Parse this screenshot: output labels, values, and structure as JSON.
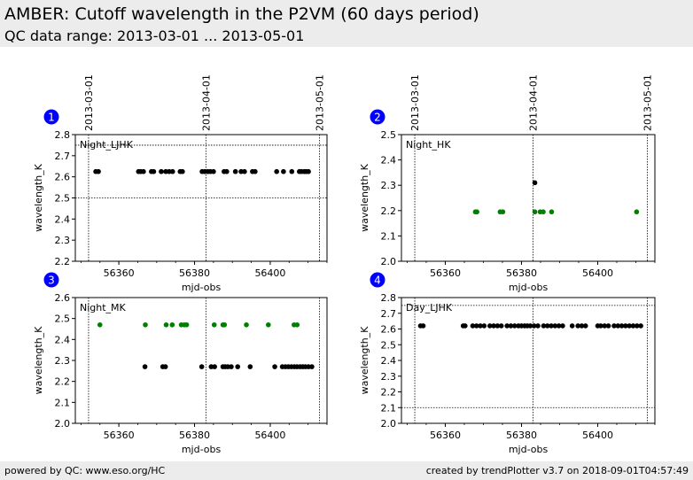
{
  "header": {
    "title": "AMBER: Cutoff wavelength in the P2VM (60 days period)",
    "subtitle": "QC data range: 2013-03-01 ... 2013-05-01"
  },
  "footer": {
    "left": "powered by QC: www.eso.org/HC",
    "right": "created by trendPlotter v3.7 on 2018-09-01T04:57:49"
  },
  "colors": {
    "series_black": "#000000",
    "series_green": "#008000",
    "badge": "#0000ff"
  },
  "chart_data": [
    {
      "type": "scatter",
      "panel_number": "1",
      "name": "Night_LJHK",
      "xlabel": "mjd-obs",
      "ylabel": "wavelength_K",
      "xlim": [
        56348.5,
        56415
      ],
      "ylim": [
        2.2,
        2.8
      ],
      "xticks": [
        56360,
        56380,
        56400
      ],
      "yticks": [
        2.2,
        2.3,
        2.4,
        2.5,
        2.6,
        2.7,
        2.8
      ],
      "hlines": [
        2.5,
        2.75
      ],
      "vlines": [
        56352.0,
        56383.0,
        56413.0
      ],
      "top_labels": [
        "2013-03-01",
        "2013-04-01",
        "2013-05-01"
      ],
      "series": [
        {
          "color": "#000000",
          "values": [
            [
              56353.9,
              2.625
            ],
            [
              56354.6,
              2.625
            ],
            [
              56365.2,
              2.625
            ],
            [
              56365.8,
              2.625
            ],
            [
              56366.5,
              2.625
            ],
            [
              56368.6,
              2.625
            ],
            [
              56369.2,
              2.625
            ],
            [
              56371.2,
              2.625
            ],
            [
              56372.4,
              2.625
            ],
            [
              56373.3,
              2.625
            ],
            [
              56374.2,
              2.625
            ],
            [
              56376.2,
              2.625
            ],
            [
              56376.8,
              2.625
            ],
            [
              56382.0,
              2.625
            ],
            [
              56382.7,
              2.625
            ],
            [
              56383.5,
              2.625
            ],
            [
              56384.2,
              2.625
            ],
            [
              56385.0,
              2.625
            ],
            [
              56387.8,
              2.625
            ],
            [
              56388.5,
              2.625
            ],
            [
              56390.8,
              2.625
            ],
            [
              56392.3,
              2.625
            ],
            [
              56393.2,
              2.625
            ],
            [
              56395.3,
              2.625
            ],
            [
              56396.0,
              2.625
            ],
            [
              56401.7,
              2.625
            ],
            [
              56403.5,
              2.625
            ],
            [
              56405.7,
              2.625
            ],
            [
              56407.7,
              2.625
            ],
            [
              56408.3,
              2.625
            ],
            [
              56409.0,
              2.625
            ],
            [
              56409.5,
              2.625
            ],
            [
              56410.1,
              2.625
            ]
          ]
        }
      ]
    },
    {
      "type": "scatter",
      "panel_number": "2",
      "name": "Night_HK",
      "xlabel": "mjd-obs",
      "ylabel": "wavelength_K",
      "xlim": [
        56348.5,
        56415
      ],
      "ylim": [
        2.0,
        2.5
      ],
      "xticks": [
        56360,
        56380,
        56400
      ],
      "yticks": [
        2.0,
        2.1,
        2.2,
        2.3,
        2.4,
        2.5
      ],
      "hlines": [],
      "vlines": [
        56352.0,
        56383.0,
        56413.0
      ],
      "top_labels": [
        "2013-03-01",
        "2013-04-01",
        "2013-05-01"
      ],
      "series": [
        {
          "color": "#000000",
          "values": [
            [
              56383.5,
              2.31
            ]
          ]
        },
        {
          "color": "#008000",
          "values": [
            [
              56367.9,
              2.195
            ],
            [
              56368.3,
              2.195
            ],
            [
              56374.4,
              2.195
            ],
            [
              56375.1,
              2.195
            ],
            [
              56383.5,
              2.195
            ],
            [
              56384.9,
              2.195
            ],
            [
              56385.7,
              2.195
            ],
            [
              56387.9,
              2.195
            ],
            [
              56410.2,
              2.195
            ]
          ]
        }
      ]
    },
    {
      "type": "scatter",
      "panel_number": "3",
      "name": "Night_MK",
      "xlabel": "mjd-obs",
      "ylabel": "wavelength_K",
      "xlim": [
        56348.5,
        56415
      ],
      "ylim": [
        2.0,
        2.6
      ],
      "xticks": [
        56360,
        56380,
        56400
      ],
      "yticks": [
        2.0,
        2.1,
        2.2,
        2.3,
        2.4,
        2.5,
        2.6
      ],
      "hlines": [],
      "vlines": [
        56352.0,
        56383.0,
        56413.0
      ],
      "top_labels": [],
      "series": [
        {
          "color": "#008000",
          "values": [
            [
              56355.0,
              2.47
            ],
            [
              56367.0,
              2.47
            ],
            [
              56372.5,
              2.47
            ],
            [
              56374.1,
              2.47
            ],
            [
              56376.5,
              2.47
            ],
            [
              56377.3,
              2.47
            ],
            [
              56377.9,
              2.47
            ],
            [
              56385.2,
              2.47
            ],
            [
              56387.5,
              2.47
            ],
            [
              56387.9,
              2.47
            ],
            [
              56393.7,
              2.47
            ],
            [
              56399.5,
              2.47
            ],
            [
              56406.3,
              2.47
            ],
            [
              56407.1,
              2.47
            ]
          ]
        },
        {
          "color": "#000000",
          "values": [
            [
              56366.9,
              2.27
            ],
            [
              56371.6,
              2.27
            ],
            [
              56372.3,
              2.27
            ],
            [
              56381.9,
              2.27
            ],
            [
              56384.4,
              2.27
            ],
            [
              56385.3,
              2.27
            ],
            [
              56387.5,
              2.27
            ],
            [
              56388.1,
              2.27
            ],
            [
              56388.8,
              2.27
            ],
            [
              56389.7,
              2.27
            ],
            [
              56391.4,
              2.27
            ],
            [
              56394.7,
              2.27
            ],
            [
              56401.2,
              2.27
            ],
            [
              56403.2,
              2.27
            ],
            [
              56404.0,
              2.27
            ],
            [
              56404.8,
              2.27
            ],
            [
              56405.6,
              2.27
            ],
            [
              56406.4,
              2.27
            ],
            [
              56407.1,
              2.27
            ],
            [
              56407.9,
              2.27
            ],
            [
              56408.6,
              2.27
            ],
            [
              56409.3,
              2.27
            ],
            [
              56410.1,
              2.27
            ],
            [
              56411.0,
              2.27
            ]
          ]
        }
      ]
    },
    {
      "type": "scatter",
      "panel_number": "4",
      "name": "Day_LJHK",
      "xlabel": "mjd-obs",
      "ylabel": "wavelength_K",
      "xlim": [
        56348.5,
        56415
      ],
      "ylim": [
        2.0,
        2.8
      ],
      "xticks": [
        56360,
        56380,
        56400
      ],
      "yticks": [
        2.0,
        2.1,
        2.2,
        2.3,
        2.4,
        2.5,
        2.6,
        2.7,
        2.8
      ],
      "hlines": [
        2.1,
        2.75
      ],
      "vlines": [
        56352.0,
        56383.0,
        56413.0
      ],
      "top_labels": [],
      "series": [
        {
          "color": "#000000",
          "values": [
            [
              56353.5,
              2.62
            ],
            [
              56354.2,
              2.62
            ],
            [
              56364.7,
              2.62
            ],
            [
              56365.2,
              2.62
            ],
            [
              56367.2,
              2.62
            ],
            [
              56368.2,
              2.62
            ],
            [
              56369.2,
              2.62
            ],
            [
              56370.2,
              2.62
            ],
            [
              56371.7,
              2.62
            ],
            [
              56372.7,
              2.62
            ],
            [
              56373.7,
              2.62
            ],
            [
              56374.7,
              2.62
            ],
            [
              56376.2,
              2.62
            ],
            [
              56377.2,
              2.62
            ],
            [
              56378.2,
              2.62
            ],
            [
              56379.2,
              2.62
            ],
            [
              56380.0,
              2.62
            ],
            [
              56380.8,
              2.62
            ],
            [
              56381.5,
              2.62
            ],
            [
              56382.3,
              2.62
            ],
            [
              56383.3,
              2.62
            ],
            [
              56384.3,
              2.62
            ],
            [
              56385.8,
              2.62
            ],
            [
              56386.8,
              2.62
            ],
            [
              56387.8,
              2.62
            ],
            [
              56388.8,
              2.62
            ],
            [
              56389.8,
              2.62
            ],
            [
              56390.8,
              2.62
            ],
            [
              56393.3,
              2.62
            ],
            [
              56394.8,
              2.62
            ],
            [
              56395.8,
              2.62
            ],
            [
              56396.8,
              2.62
            ],
            [
              56400.0,
              2.62
            ],
            [
              56400.8,
              2.62
            ],
            [
              56401.8,
              2.62
            ],
            [
              56402.8,
              2.62
            ],
            [
              56404.3,
              2.62
            ],
            [
              56405.3,
              2.62
            ],
            [
              56406.3,
              2.62
            ],
            [
              56407.3,
              2.62
            ],
            [
              56408.3,
              2.62
            ],
            [
              56409.3,
              2.62
            ],
            [
              56410.3,
              2.62
            ],
            [
              56411.3,
              2.62
            ]
          ]
        }
      ]
    }
  ]
}
